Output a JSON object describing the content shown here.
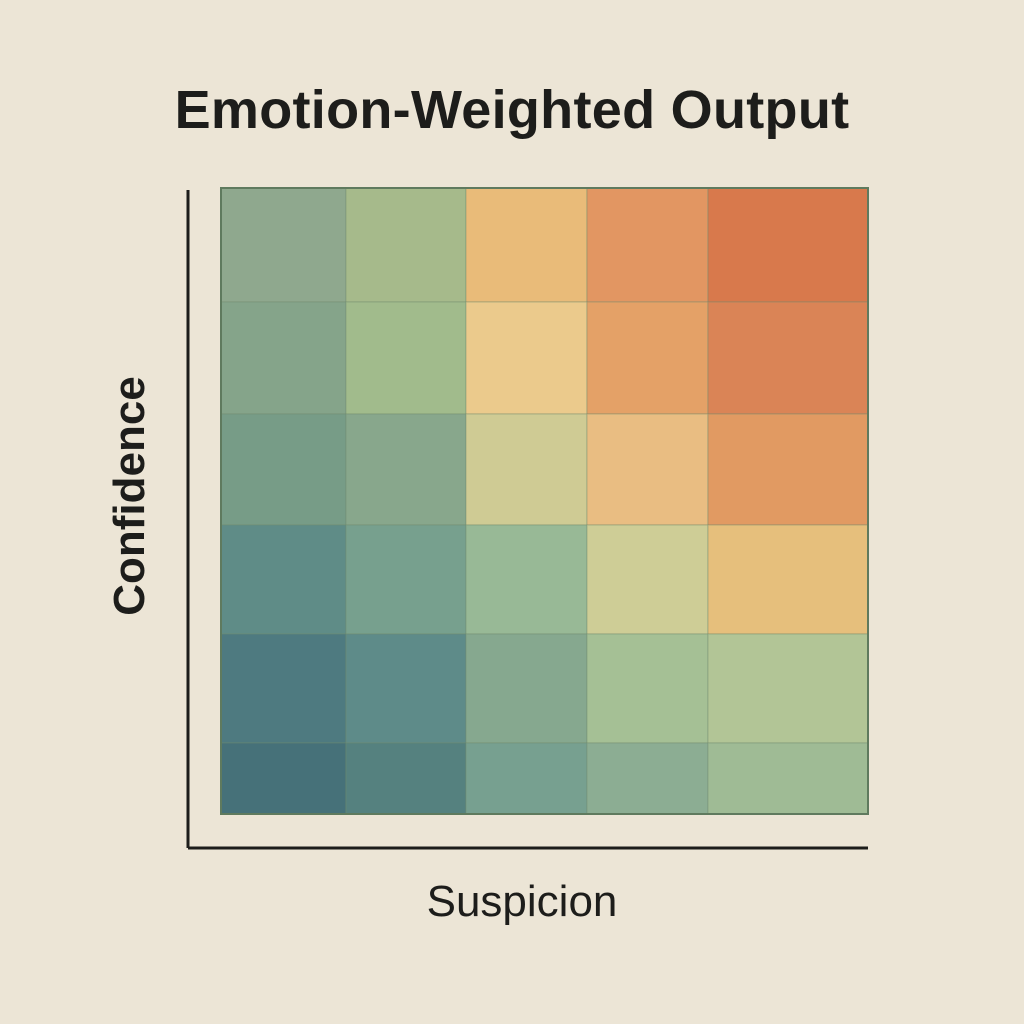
{
  "chart_data": {
    "type": "heatmap",
    "title": "Emotion-Weighted Output",
    "xlabel": "Suspicion",
    "ylabel": "Confidence",
    "grid": true,
    "legend": "none",
    "row_order": "top-to-bottom",
    "n_cols": 5,
    "n_rows": 6,
    "cells": [
      [
        "#8fa88e",
        "#a6ba8b",
        "#e9bb79",
        "#e29662",
        "#d8794c"
      ],
      [
        "#85a48a",
        "#a1bb8c",
        "#ebca8c",
        "#e4a167",
        "#da8456"
      ],
      [
        "#779c87",
        "#88a78c",
        "#cfcb94",
        "#e9bd82",
        "#e19a62"
      ],
      [
        "#5f8c87",
        "#77a08e",
        "#98b996",
        "#cecd96",
        "#e6bf7c"
      ],
      [
        "#4e7a80",
        "#5e8b89",
        "#86a88f",
        "#a5c095",
        "#b2c596"
      ],
      [
        "#467179",
        "#55817f",
        "#77a090",
        "#8cad93",
        "#9fbb95"
      ]
    ]
  }
}
